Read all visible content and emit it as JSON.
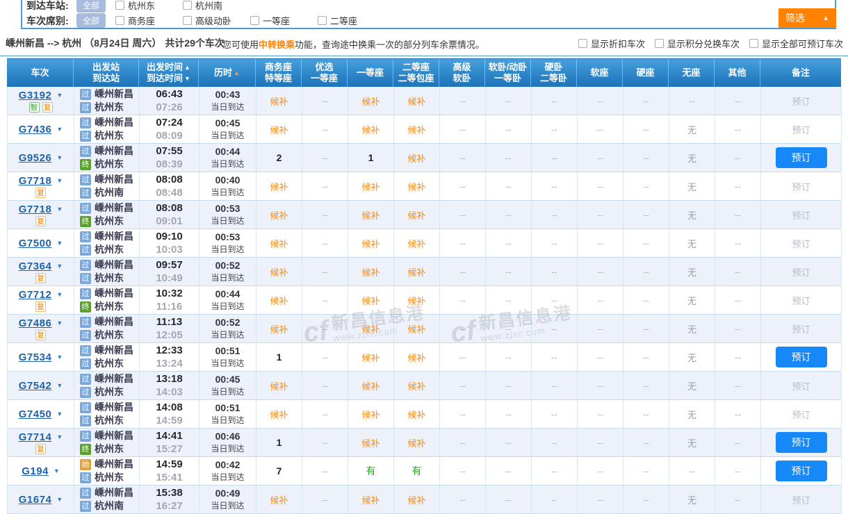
{
  "filters": {
    "arrival_station": {
      "label": "到达车站:",
      "all_label": "全部",
      "options": [
        "杭州东",
        "杭州南"
      ]
    },
    "seat_class": {
      "label": "车次席别:",
      "all_label": "全部",
      "options": [
        "商务座",
        "高级动卧",
        "一等座",
        "二等座"
      ]
    },
    "filter_button": "筛选",
    "filter_button_arrow": "▲"
  },
  "summary": {
    "from": "嵊州新昌",
    "arrow": "-->",
    "to": "杭州",
    "date": "（8月24日  周六）",
    "count_text": "共计29个车次",
    "tip_prefix": "您可使用",
    "tip_highlight": "中转换乘",
    "tip_suffix": "功能，查询途中换乘一次的部分列车余票情况。",
    "toggles": [
      "显示折扣车次",
      "显示积分兑换车次",
      "显示全部可预订车次"
    ]
  },
  "colors": {
    "accent_orange": "#ff8201",
    "button_blue": "#1788f8",
    "header_blue": "#2b84c7",
    "waitlist_orange": "#fa8c16",
    "available_green": "#28a428"
  },
  "watermark": {
    "logo": "cf",
    "title": "新昌信息港",
    "url": "www.zjxc.com"
  },
  "table": {
    "headers": [
      {
        "lines": [
          {
            "text": "车次"
          }
        ]
      },
      {
        "lines": [
          {
            "text": "出发站"
          },
          {
            "text": "到达站"
          }
        ]
      },
      {
        "lines": [
          {
            "text": "出发时间",
            "arrow": "▲",
            "arrow_color": "#ffffff"
          },
          {
            "text": "到达时间",
            "arrow": "▼",
            "arrow_color": "#ffffff"
          }
        ]
      },
      {
        "lines": [
          {
            "text": "历时",
            "arrow": "▲",
            "arrow_color": "#ff9b2f"
          }
        ]
      },
      {
        "lines": [
          {
            "text": "商务座"
          },
          {
            "text": "特等座"
          }
        ]
      },
      {
        "lines": [
          {
            "text": "优选"
          },
          {
            "text": "一等座"
          }
        ]
      },
      {
        "lines": [
          {
            "text": "一等座"
          }
        ]
      },
      {
        "lines": [
          {
            "text": "二等座"
          },
          {
            "text": "二等包座"
          }
        ]
      },
      {
        "lines": [
          {
            "text": "高级"
          },
          {
            "text": "软卧"
          }
        ]
      },
      {
        "lines": [
          {
            "text": "软卧/动卧"
          },
          {
            "text": "一等卧"
          }
        ]
      },
      {
        "lines": [
          {
            "text": "硬卧"
          },
          {
            "text": "二等卧"
          }
        ]
      },
      {
        "lines": [
          {
            "text": "软座"
          }
        ]
      },
      {
        "lines": [
          {
            "text": "硬座"
          }
        ]
      },
      {
        "lines": [
          {
            "text": "无座"
          }
        ]
      },
      {
        "lines": [
          {
            "text": "其他"
          }
        ]
      },
      {
        "lines": [
          {
            "text": "备注"
          }
        ]
      }
    ],
    "rows": [
      {
        "train": "G3192",
        "train_badges": [
          "智",
          "复"
        ],
        "from": {
          "tag": "过",
          "name": "嵊州新昌"
        },
        "to": {
          "tag": "过",
          "name": "杭州东"
        },
        "depart": "06:43",
        "arrive": "07:26",
        "duration": "00:43",
        "arrival_day": "当日到达",
        "seats": [
          "候补",
          "--",
          "候补",
          "候补",
          "--",
          "--",
          "--",
          "--",
          "--",
          "--",
          "--"
        ],
        "remark": {
          "label": "预订",
          "bookable": false
        }
      },
      {
        "train": "G7436",
        "train_badges": [],
        "from": {
          "tag": "过",
          "name": "嵊州新昌"
        },
        "to": {
          "tag": "过",
          "name": "杭州东"
        },
        "depart": "07:24",
        "arrive": "08:09",
        "duration": "00:45",
        "arrival_day": "当日到达",
        "seats": [
          "候补",
          "--",
          "候补",
          "候补",
          "--",
          "--",
          "--",
          "--",
          "--",
          "无",
          "--"
        ],
        "remark": {
          "label": "预订",
          "bookable": false
        }
      },
      {
        "train": "G9526",
        "train_badges": [],
        "from": {
          "tag": "过",
          "name": "嵊州新昌"
        },
        "to": {
          "tag": "终",
          "name": "杭州东"
        },
        "depart": "07:55",
        "arrive": "08:39",
        "duration": "00:44",
        "arrival_day": "当日到达",
        "seats": [
          "2",
          "--",
          "1",
          "候补",
          "--",
          "--",
          "--",
          "--",
          "--",
          "无",
          "--"
        ],
        "remark": {
          "label": "预订",
          "bookable": true
        }
      },
      {
        "train": "G7718",
        "train_badges": [
          "复"
        ],
        "from": {
          "tag": "过",
          "name": "嵊州新昌"
        },
        "to": {
          "tag": "过",
          "name": "杭州南"
        },
        "depart": "08:08",
        "arrive": "08:48",
        "duration": "00:40",
        "arrival_day": "当日到达",
        "seats": [
          "候补",
          "--",
          "候补",
          "候补",
          "--",
          "--",
          "--",
          "--",
          "--",
          "无",
          "--"
        ],
        "remark": {
          "label": "预订",
          "bookable": false
        }
      },
      {
        "train": "G7718",
        "train_badges": [
          "复"
        ],
        "from": {
          "tag": "过",
          "name": "嵊州新昌"
        },
        "to": {
          "tag": "终",
          "name": "杭州东"
        },
        "depart": "08:08",
        "arrive": "09:01",
        "duration": "00:53",
        "arrival_day": "当日到达",
        "seats": [
          "候补",
          "--",
          "候补",
          "候补",
          "--",
          "--",
          "--",
          "--",
          "--",
          "无",
          "--"
        ],
        "remark": {
          "label": "预订",
          "bookable": false
        }
      },
      {
        "train": "G7500",
        "train_badges": [],
        "from": {
          "tag": "过",
          "name": "嵊州新昌"
        },
        "to": {
          "tag": "过",
          "name": "杭州东"
        },
        "depart": "09:10",
        "arrive": "10:03",
        "duration": "00:53",
        "arrival_day": "当日到达",
        "seats": [
          "候补",
          "--",
          "候补",
          "候补",
          "--",
          "--",
          "--",
          "--",
          "--",
          "无",
          "--"
        ],
        "remark": {
          "label": "预订",
          "bookable": false
        }
      },
      {
        "train": "G7364",
        "train_badges": [
          "复"
        ],
        "from": {
          "tag": "过",
          "name": "嵊州新昌"
        },
        "to": {
          "tag": "过",
          "name": "杭州东"
        },
        "depart": "09:57",
        "arrive": "10:49",
        "duration": "00:52",
        "arrival_day": "当日到达",
        "seats": [
          "候补",
          "--",
          "候补",
          "候补",
          "--",
          "--",
          "--",
          "--",
          "--",
          "无",
          "--"
        ],
        "remark": {
          "label": "预订",
          "bookable": false
        }
      },
      {
        "train": "G7712",
        "train_badges": [
          "复"
        ],
        "from": {
          "tag": "过",
          "name": "嵊州新昌"
        },
        "to": {
          "tag": "终",
          "name": "杭州东"
        },
        "depart": "10:32",
        "arrive": "11:16",
        "duration": "00:44",
        "arrival_day": "当日到达",
        "seats": [
          "候补",
          "--",
          "候补",
          "候补",
          "--",
          "--",
          "--",
          "--",
          "--",
          "无",
          "--"
        ],
        "remark": {
          "label": "预订",
          "bookable": false
        }
      },
      {
        "train": "G7486",
        "train_badges": [
          "复"
        ],
        "from": {
          "tag": "过",
          "name": "嵊州新昌"
        },
        "to": {
          "tag": "过",
          "name": "杭州东"
        },
        "depart": "11:13",
        "arrive": "12:05",
        "duration": "00:52",
        "arrival_day": "当日到达",
        "seats": [
          "候补",
          "--",
          "候补",
          "候补",
          "--",
          "--",
          "--",
          "--",
          "--",
          "无",
          "--"
        ],
        "remark": {
          "label": "预订",
          "bookable": false
        }
      },
      {
        "train": "G7534",
        "train_badges": [],
        "from": {
          "tag": "过",
          "name": "嵊州新昌"
        },
        "to": {
          "tag": "过",
          "name": "杭州东"
        },
        "depart": "12:33",
        "arrive": "13:24",
        "duration": "00:51",
        "arrival_day": "当日到达",
        "seats": [
          "1",
          "--",
          "候补",
          "候补",
          "--",
          "--",
          "--",
          "--",
          "--",
          "无",
          "--"
        ],
        "remark": {
          "label": "预订",
          "bookable": true
        }
      },
      {
        "train": "G7542",
        "train_badges": [],
        "from": {
          "tag": "过",
          "name": "嵊州新昌"
        },
        "to": {
          "tag": "过",
          "name": "杭州东"
        },
        "depart": "13:18",
        "arrive": "14:03",
        "duration": "00:45",
        "arrival_day": "当日到达",
        "seats": [
          "候补",
          "--",
          "候补",
          "候补",
          "--",
          "--",
          "--",
          "--",
          "--",
          "无",
          "--"
        ],
        "remark": {
          "label": "预订",
          "bookable": false
        }
      },
      {
        "train": "G7450",
        "train_badges": [],
        "from": {
          "tag": "过",
          "name": "嵊州新昌"
        },
        "to": {
          "tag": "过",
          "name": "杭州东"
        },
        "depart": "14:08",
        "arrive": "14:59",
        "duration": "00:51",
        "arrival_day": "当日到达",
        "seats": [
          "候补",
          "--",
          "候补",
          "候补",
          "--",
          "--",
          "--",
          "--",
          "--",
          "无",
          "--"
        ],
        "remark": {
          "label": "预订",
          "bookable": false
        }
      },
      {
        "train": "G7714",
        "train_badges": [
          "复"
        ],
        "from": {
          "tag": "过",
          "name": "嵊州新昌"
        },
        "to": {
          "tag": "终",
          "name": "杭州东"
        },
        "depart": "14:41",
        "arrive": "15:27",
        "duration": "00:46",
        "arrival_day": "当日到达",
        "seats": [
          "1",
          "--",
          "候补",
          "候补",
          "--",
          "--",
          "--",
          "--",
          "--",
          "无",
          "--"
        ],
        "remark": {
          "label": "预订",
          "bookable": true
        }
      },
      {
        "train": "G194",
        "train_badges": [],
        "from": {
          "tag": "始",
          "name": "嵊州新昌"
        },
        "to": {
          "tag": "过",
          "name": "杭州东"
        },
        "depart": "14:59",
        "arrive": "15:41",
        "duration": "00:42",
        "arrival_day": "当日到达",
        "seats": [
          "7",
          "--",
          "有",
          "有",
          "--",
          "--",
          "--",
          "--",
          "--",
          "--",
          "--"
        ],
        "remark": {
          "label": "预订",
          "bookable": true
        }
      },
      {
        "train": "G1674",
        "train_badges": [],
        "from": {
          "tag": "过",
          "name": "嵊州新昌"
        },
        "to": {
          "tag": "过",
          "name": "杭州南"
        },
        "depart": "15:38",
        "arrive": "16:27",
        "duration": "00:49",
        "arrival_day": "当日到达",
        "seats": [
          "候补",
          "--",
          "候补",
          "候补",
          "--",
          "--",
          "--",
          "--",
          "--",
          "无",
          "--"
        ],
        "remark": {
          "label": "预订",
          "bookable": false
        }
      }
    ]
  }
}
